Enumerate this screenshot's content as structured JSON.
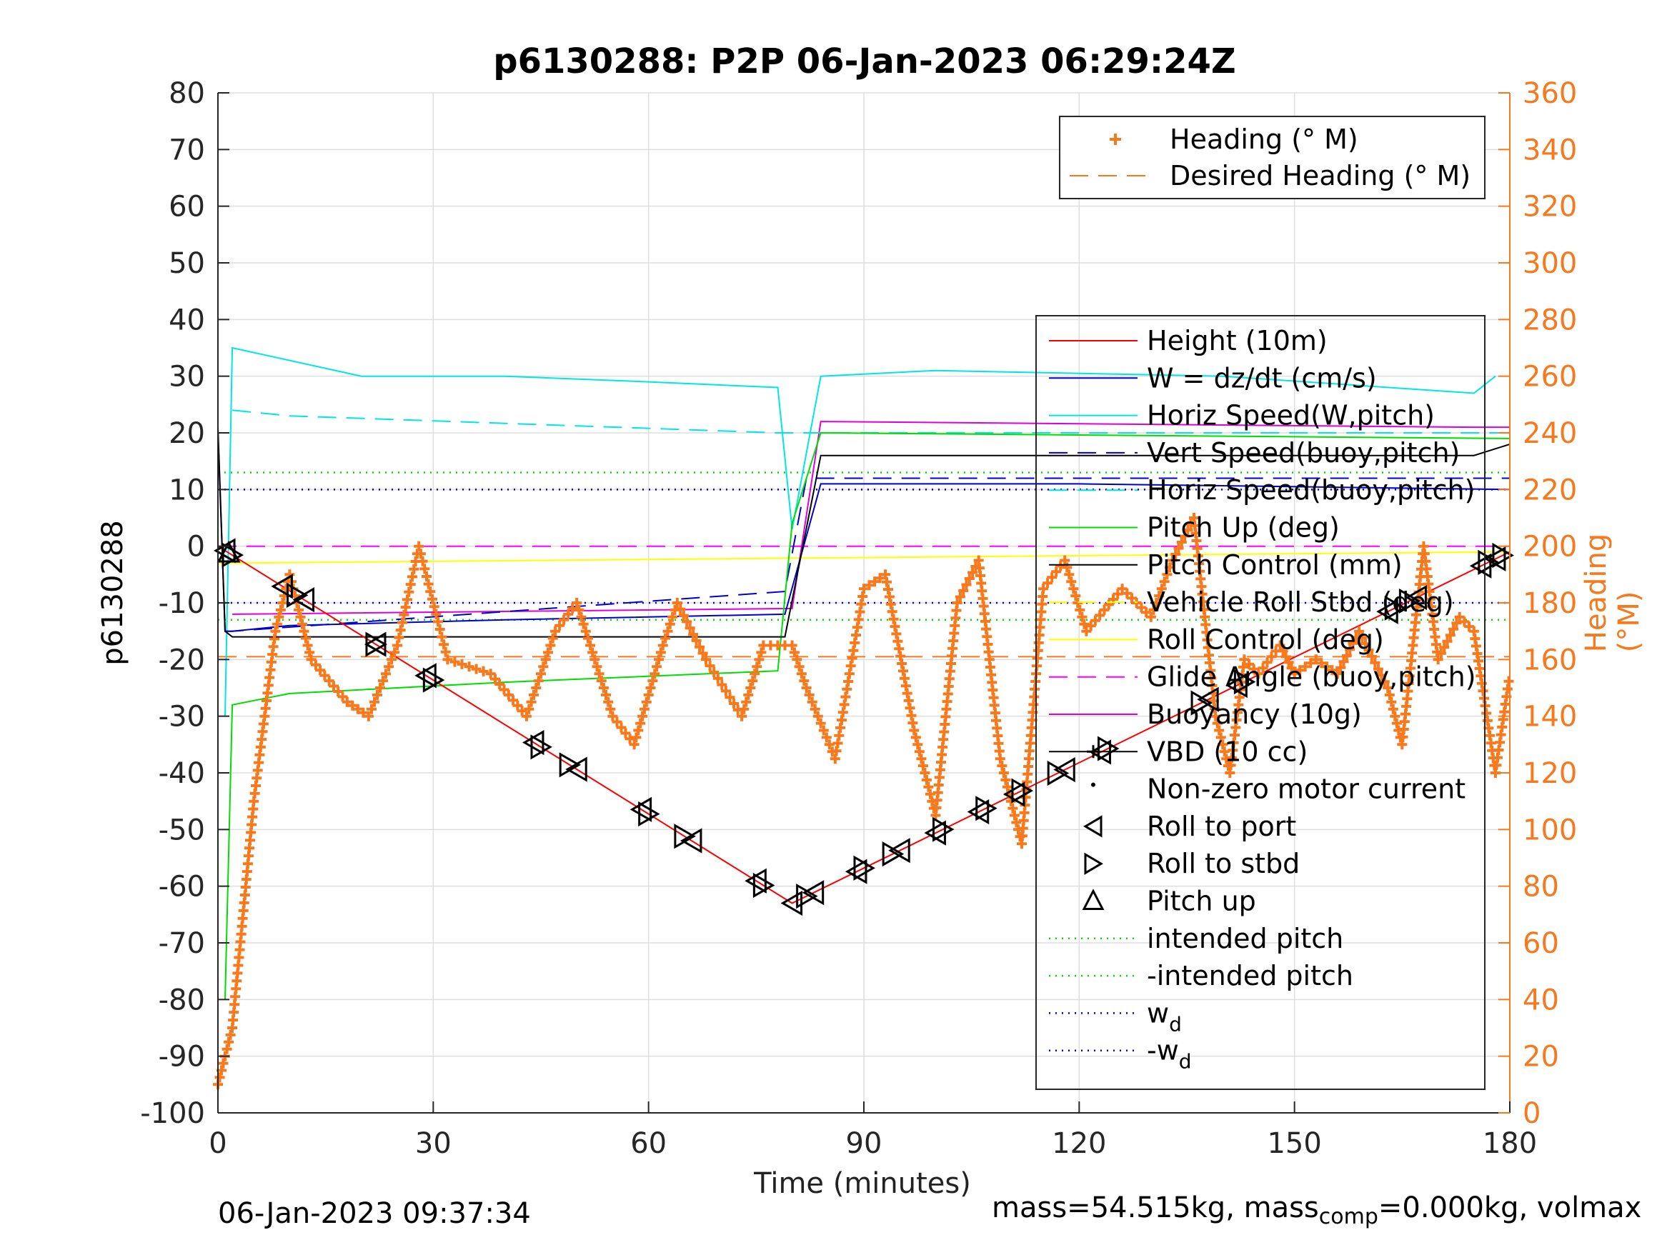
{
  "chart_data": {
    "type": "line",
    "title": "p6130288: P2P 06-Jan-2023 06:29:24Z",
    "xlabel": "Time (minutes)",
    "ylabel": "p6130288",
    "y2label": "Heading (°M)",
    "xlim": [
      0,
      180
    ],
    "ylim": [
      -100,
      80
    ],
    "y2lim": [
      0,
      360
    ],
    "xticks": [
      "0",
      "30",
      "60",
      "90",
      "120",
      "150",
      "180"
    ],
    "yticks": [
      "80",
      "70",
      "60",
      "50",
      "40",
      "30",
      "20",
      "10",
      "0",
      "-10",
      "-20",
      "-30",
      "-40",
      "-50",
      "-60",
      "-70",
      "-80",
      "-90",
      "-100"
    ],
    "y2ticks": [
      "360",
      "340",
      "320",
      "300",
      "280",
      "260",
      "240",
      "220",
      "200",
      "180",
      "160",
      "140",
      "120",
      "100",
      "80",
      "60",
      "40",
      "20",
      "0"
    ],
    "grid": true,
    "colors": {
      "heading": "#F7791D",
      "height": "#FF0000",
      "w": "#0000CC",
      "horiz_speed": "#00E5E5",
      "pitch_up": "#00DD00",
      "pitch_control": "#000000",
      "roll_control": "#FFFF00",
      "glide_angle": "#FF00FF",
      "buoyancy": "#DD00DD"
    },
    "legend_top": {
      "placement": "top-right",
      "items": [
        "Heading (° M)",
        "Desired Heading (° M)"
      ]
    },
    "legend_main": {
      "placement": "right",
      "items": [
        "Height (10m)",
        "W = dz/dt (cm/s)",
        "Horiz Speed(W,pitch)",
        "Vert Speed(buoy,pitch)",
        "Horiz Speed(buoy,pitch)",
        "Pitch Up (deg)",
        "Pitch Control (mm)",
        "Vehicle Roll Stbd (deg)",
        "Roll Control (deg)",
        "Glide Angle (buoy,pitch)",
        "Buoyancy (10g)",
        "VBD (10 cc)",
        "Non-zero motor current",
        "Roll to port",
        "Roll to stbd",
        "Pitch up",
        "intended pitch",
        "-intended pitch",
        "w",
        "-w"
      ],
      "subscript": "d"
    },
    "series": [
      {
        "name": "Height (10m)",
        "x": [
          0,
          80,
          180
        ],
        "y": [
          0,
          -63,
          -1
        ]
      },
      {
        "name": "W = dz/dt (cm/s)",
        "x": [
          0,
          1,
          2,
          10,
          40,
          79,
          84,
          120,
          180
        ],
        "y": [
          20,
          -15,
          -15,
          -14,
          -13,
          -12,
          11,
          11,
          10
        ]
      },
      {
        "name": "Horiz Speed(W,pitch)",
        "x": [
          1,
          2,
          20,
          40,
          60,
          78,
          80,
          84,
          100,
          140,
          175,
          178
        ],
        "y": [
          -30,
          35,
          30,
          30,
          29,
          28,
          3,
          30,
          31,
          30,
          27,
          30
        ]
      },
      {
        "name": "Vert Speed(buoy,pitch)",
        "x": [
          1,
          2,
          79,
          82,
          180
        ],
        "y": [
          -15,
          -15,
          -8,
          12,
          12
        ]
      },
      {
        "name": "Horiz Speed(buoy,pitch)",
        "x": [
          2,
          10,
          78,
          80,
          180
        ],
        "y": [
          24,
          23,
          20,
          20,
          20
        ]
      },
      {
        "name": "Pitch Up (deg)",
        "x": [
          1,
          2,
          10,
          40,
          78,
          80,
          84,
          180
        ],
        "y": [
          -80,
          -28,
          -26,
          -24,
          -22,
          4,
          20,
          19
        ]
      },
      {
        "name": "Pitch Control (mm)",
        "x": [
          0,
          1,
          2,
          79,
          84,
          175,
          180
        ],
        "y": [
          21,
          -15,
          -16,
          -16,
          16,
          16,
          18
        ]
      },
      {
        "name": "Roll Control (deg)",
        "x": [
          0,
          180
        ],
        "y": [
          -3,
          -1
        ]
      },
      {
        "name": "Glide Angle (buoy,pitch)",
        "x": [
          0,
          80,
          180
        ],
        "y": [
          0,
          0,
          0
        ]
      },
      {
        "name": "Buoyancy (10g)",
        "x": [
          2,
          80,
          84,
          175,
          180
        ],
        "y": [
          -12,
          -11,
          22,
          21,
          21
        ]
      },
      {
        "name": "Heading (° M)",
        "axis": "right",
        "x": [
          0,
          2,
          5,
          8,
          10,
          13,
          18,
          21,
          25,
          28,
          32,
          38,
          43,
          47,
          50,
          55,
          58,
          62,
          64,
          68,
          73,
          76,
          80,
          82,
          86,
          90,
          93,
          97,
          100,
          103,
          106,
          109,
          112,
          115,
          118,
          121,
          126,
          130,
          133,
          136,
          139,
          141,
          143,
          145,
          148,
          150,
          153,
          156,
          159,
          163,
          165,
          168,
          170,
          173,
          175,
          178,
          180
        ],
        "y": [
          10,
          30,
          110,
          170,
          190,
          160,
          145,
          140,
          165,
          200,
          160,
          155,
          140,
          170,
          180,
          140,
          130,
          165,
          180,
          160,
          140,
          165,
          165,
          150,
          125,
          185,
          190,
          135,
          105,
          180,
          195,
          125,
          95,
          185,
          195,
          170,
          185,
          175,
          195,
          210,
          140,
          120,
          160,
          155,
          165,
          155,
          160,
          155,
          170,
          150,
          130,
          200,
          160,
          175,
          170,
          120,
          155
        ]
      },
      {
        "name": "Desired Heading (° M)",
        "axis": "right",
        "x": [
          0,
          180
        ],
        "y": [
          161,
          161
        ]
      }
    ],
    "intended_pitch": 13,
    "w_d": 10,
    "markers": {
      "roll_port_x": [
        1,
        9,
        12,
        22,
        29,
        44,
        50,
        59,
        66,
        75,
        80,
        83,
        89,
        95,
        100,
        106,
        111,
        118,
        123,
        138,
        142,
        163,
        167,
        176,
        178
      ],
      "roll_stbd_x": [
        2,
        11,
        22,
        30,
        45,
        49,
        60,
        65,
        76,
        82,
        90,
        94,
        101,
        107,
        112,
        117,
        124,
        137,
        143,
        164,
        166,
        177,
        179
      ],
      "pitch_up_x": [
        1.5
      ]
    }
  },
  "footer": {
    "timestamp": "06-Jan-2023 09:37:34",
    "mass_text_1": "mass=54.515kg, mass",
    "mass_sub": "comp",
    "mass_text_2": "=0.000kg, volmax"
  }
}
